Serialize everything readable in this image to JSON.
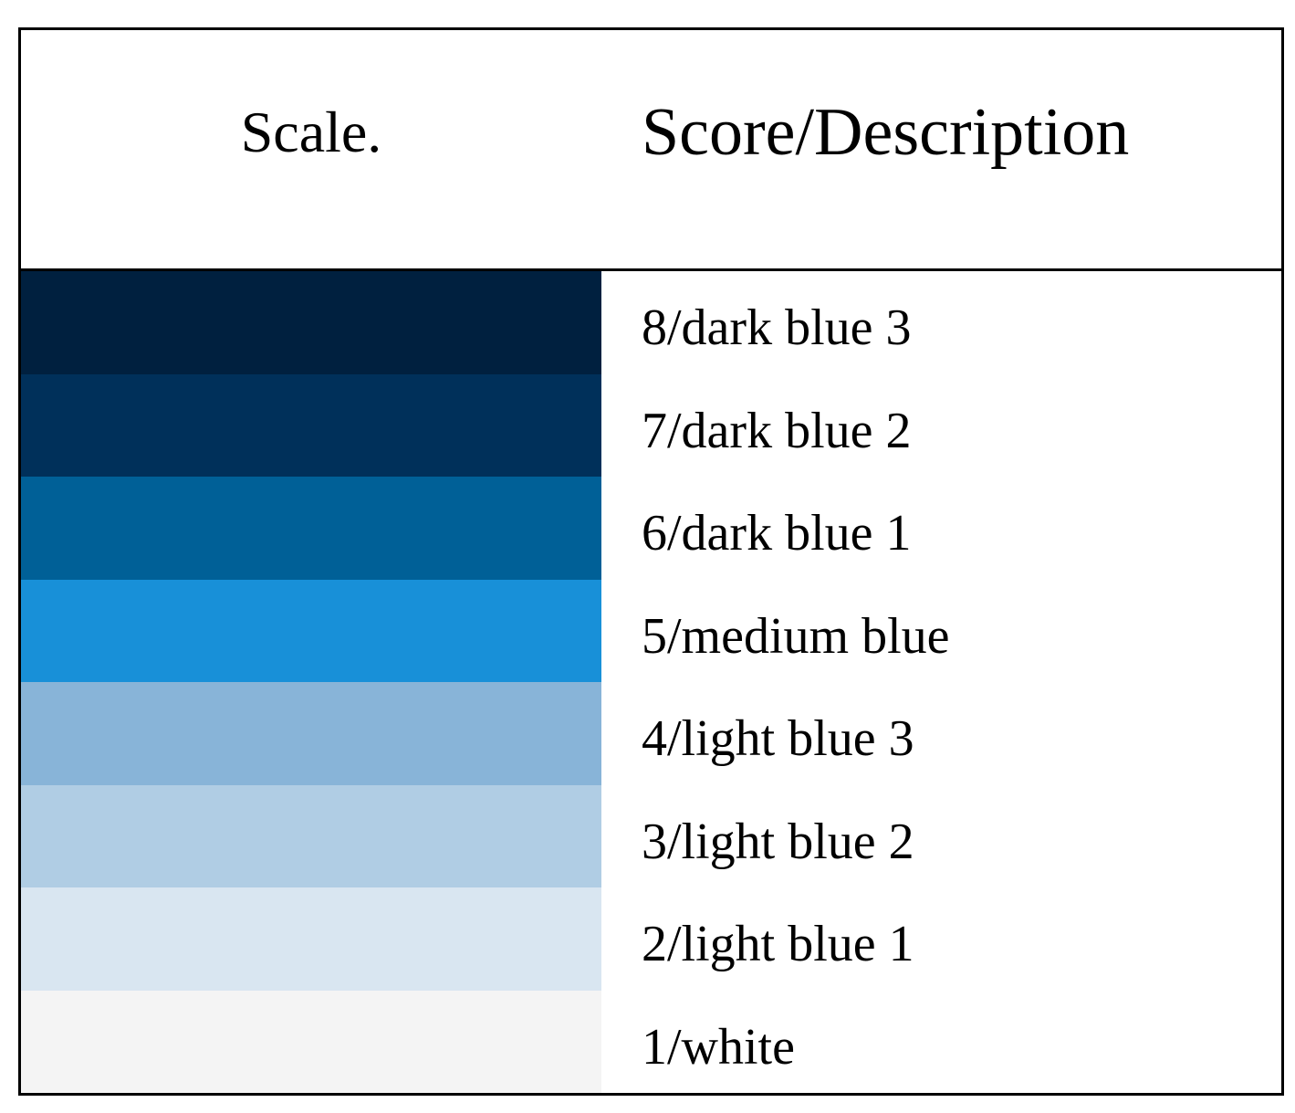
{
  "table": {
    "header": [
      "Scale.",
      "Score/Description"
    ],
    "rows": [
      {
        "color": "#00203f",
        "label": "8/dark blue 3"
      },
      {
        "color": "#00305a",
        "label": "7/dark blue 2"
      },
      {
        "color": "#006097",
        "label": "6/dark blue 1"
      },
      {
        "color": "#1890d8",
        "label": "5/medium blue"
      },
      {
        "color": "#88b4d8",
        "label": "4/light blue 3"
      },
      {
        "color": "#b0cde4",
        "label": "3/light blue 2"
      },
      {
        "color": "#d9e6f1",
        "label": "2/light blue 1"
      },
      {
        "color": "#f4f4f4",
        "label": "1/white"
      }
    ]
  }
}
